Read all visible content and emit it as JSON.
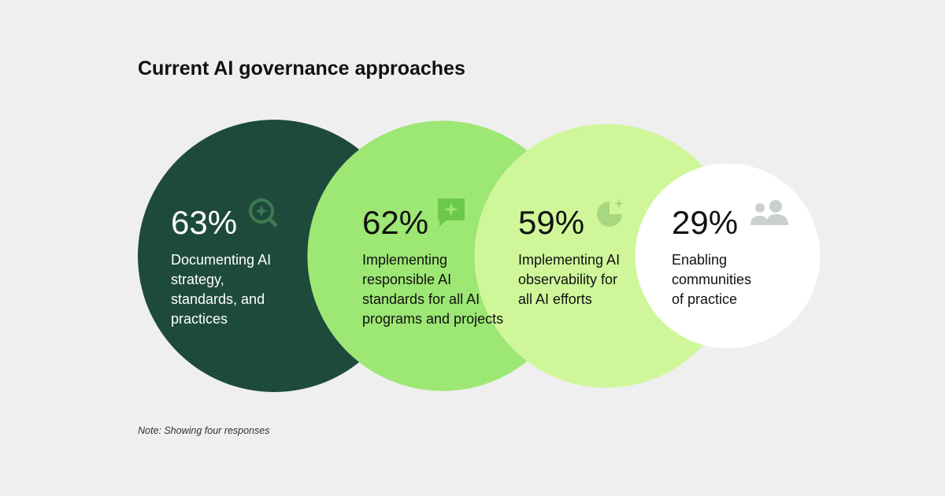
{
  "chart_data": {
    "type": "bubble",
    "title": "Current AI governance approaches",
    "categories": [
      "Documenting AI strategy, standards, and practices",
      "Implementing responsible AI standards for all AI programs and projects",
      "Implementing AI observability for all AI efforts",
      "Enabling communities of practice"
    ],
    "values": [
      63,
      62,
      59,
      29
    ],
    "value_labels": [
      "63%",
      "62%",
      "59%",
      "29%"
    ],
    "colors": [
      "#1e4a3c",
      "#9de774",
      "#cff79a",
      "#ffffff"
    ],
    "note": "Note: Showing four responses"
  }
}
